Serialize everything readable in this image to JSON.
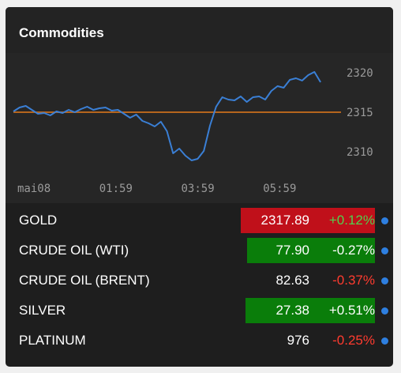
{
  "widget": {
    "title": "Commodities"
  },
  "colors": {
    "line": "#3a7fd5",
    "reference": "#b5651d",
    "up_box": "#0a7d0a",
    "down_box": "#c0101a",
    "pos_text": "#4fd24f",
    "neg_text": "#ff3b2f",
    "dot": "#2e7fe0"
  },
  "chart_data": {
    "type": "line",
    "title": "",
    "xlabel": "",
    "ylabel": "",
    "y_ticks": [
      "2320",
      "2315",
      "2310"
    ],
    "x_ticks": [
      "mai08",
      "01:59",
      "03:59",
      "05:59"
    ],
    "reference_value": 2315.0,
    "ylim": [
      2307.5,
      2321.5
    ],
    "y_tick_values": [
      2320,
      2315,
      2310
    ],
    "x_tick_hours": [
      0,
      2,
      4,
      6
    ],
    "x_range_hours": [
      0,
      8
    ],
    "series": [
      {
        "x": [
          0.0,
          0.15,
          0.3,
          0.45,
          0.6,
          0.75,
          0.9,
          1.05,
          1.2,
          1.35,
          1.5,
          1.65,
          1.8,
          1.95,
          2.1,
          2.25,
          2.4,
          2.55,
          2.7,
          2.85,
          3.0,
          3.15,
          3.3,
          3.45,
          3.6,
          3.75,
          3.9,
          4.05,
          4.2,
          4.35,
          4.5,
          4.65,
          4.8,
          4.95,
          5.1,
          5.25,
          5.4,
          5.55,
          5.7,
          5.85,
          6.0,
          6.15,
          6.3,
          6.45,
          6.6,
          6.75,
          6.9,
          7.05,
          7.2,
          7.35,
          7.5
        ],
        "y": [
          2315.1,
          2315.6,
          2315.8,
          2315.3,
          2314.8,
          2314.9,
          2314.6,
          2315.1,
          2314.9,
          2315.3,
          2315.0,
          2315.4,
          2315.7,
          2315.3,
          2315.5,
          2315.6,
          2315.2,
          2315.3,
          2314.8,
          2314.3,
          2314.7,
          2313.9,
          2313.6,
          2313.2,
          2313.8,
          2312.6,
          2309.8,
          2310.4,
          2309.5,
          2308.9,
          2309.1,
          2310.1,
          2313.3,
          2315.7,
          2316.9,
          2316.6,
          2316.5,
          2317.0,
          2316.3,
          2316.9,
          2317.0,
          2316.6,
          2317.7,
          2318.3,
          2318.1,
          2319.1,
          2319.3,
          2319.0,
          2319.7,
          2320.1,
          2318.8
        ]
      }
    ]
  },
  "rows": [
    {
      "name": "GOLD",
      "price": "2317.89",
      "change": "+0.12%",
      "box": "down",
      "dir": "up",
      "box_left": 298
    },
    {
      "name": "CRUDE OIL (WTI)",
      "price": "77.90",
      "change": "-0.27%",
      "box": "up",
      "dir": "down",
      "box_left": 306
    },
    {
      "name": "CRUDE OIL (BRENT)",
      "price": "82.63",
      "change": "-0.37%",
      "box": "none",
      "dir": "down",
      "box_left": 0
    },
    {
      "name": "SILVER",
      "price": "27.38",
      "change": "+0.51%",
      "box": "up",
      "dir": "up",
      "box_left": 304
    },
    {
      "name": "PLATINUM",
      "price": "976",
      "change": "-0.25%",
      "box": "none",
      "dir": "down",
      "box_left": 0
    }
  ]
}
